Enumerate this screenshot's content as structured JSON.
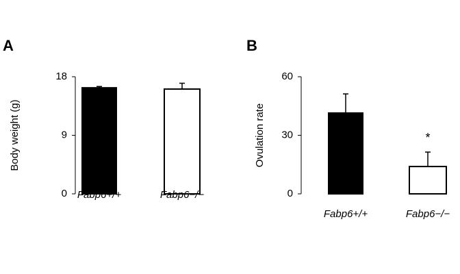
{
  "chart_data": [
    {
      "type": "bar",
      "panel": "A",
      "y_label": "Body weight (g)",
      "categories": [
        "Fabp6+/+",
        "Fabp6−/−"
      ],
      "values": [
        16.3,
        16.1
      ],
      "errors": [
        0.2,
        0.9
      ],
      "colors": [
        "#000000",
        "#ffffff"
      ],
      "ylim": [
        0,
        18
      ],
      "yticks": [
        0,
        9,
        18
      ]
    },
    {
      "type": "bar",
      "panel": "B",
      "y_label": "Ovulation rate",
      "categories": [
        "Fabp6+/+",
        "Fabp6−/−"
      ],
      "values": [
        41.4,
        14.0
      ],
      "errors": [
        9.8,
        7.4
      ],
      "colors": [
        "#000000",
        "#ffffff"
      ],
      "ylim": [
        0,
        60
      ],
      "yticks": [
        0,
        30,
        60
      ],
      "annotation": {
        "text": "*",
        "category": "Fabp6−/−"
      }
    }
  ]
}
